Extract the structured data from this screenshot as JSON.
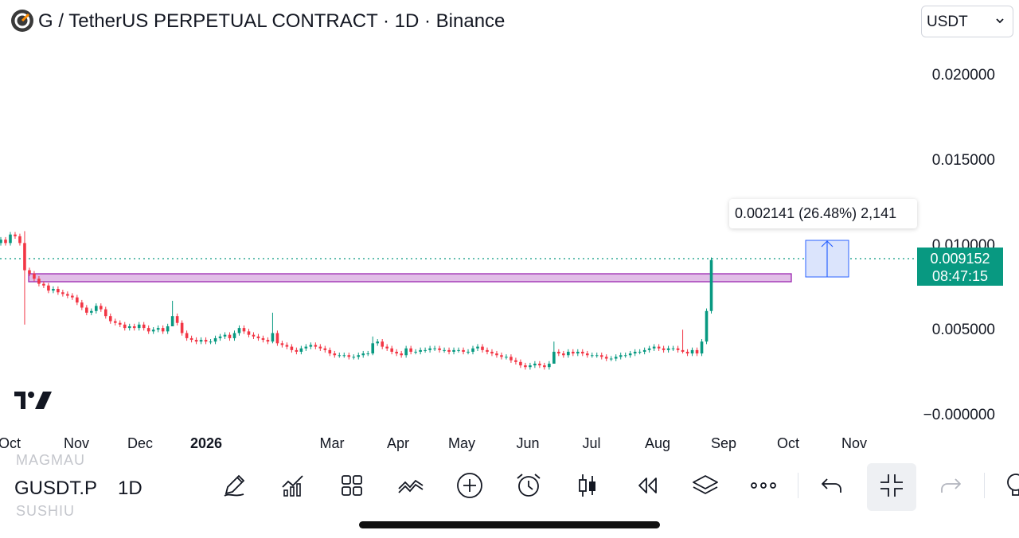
{
  "header": {
    "title": "G / TetherUS PERPETUAL CONTRACT · 1D · Binance",
    "currency": "USDT"
  },
  "price_axis": [
    "0.020000",
    "0.015000",
    "0.010000",
    "0.005000",
    "−0.000000"
  ],
  "current_price": {
    "value": "0.009152",
    "countdown": "08:47:15",
    "color": "#089981"
  },
  "measure_tooltip": "0.002141 (26.48%) 2,141",
  "time_axis": [
    "Oct",
    "Nov",
    "Dec",
    "2026",
    "Mar",
    "Apr",
    "May",
    "Jun",
    "Jul",
    "Aug",
    "Sep",
    "Oct",
    "Nov"
  ],
  "bottom_bar": {
    "faded_above": "MAGMAU",
    "symbol": "GUSDT.P",
    "faded_below": "SUSHIU",
    "interval": "1D",
    "icons": [
      "pen-icon",
      "indicators-icon",
      "templates-icon",
      "compare-icon",
      "add-icon",
      "alert-icon",
      "candles-icon",
      "replay-icon",
      "layers-icon",
      "more-icon",
      "undo-icon",
      "collapse-icon",
      "redo-icon",
      "lightbulb-icon"
    ]
  },
  "colors": {
    "up": "#089981",
    "down": "#f23645",
    "zone": "#e1bee7",
    "measure": "#2962ff"
  },
  "chart_data": {
    "type": "candlestick",
    "ylim": [
      0,
      0.02
    ],
    "last_price": 0.009152,
    "closes": [
      0.0103,
      0.0101,
      0.0106,
      0.0105,
      0.0101,
      0.0085,
      0.0083,
      0.008,
      0.0077,
      0.0076,
      0.0073,
      0.0074,
      0.0072,
      0.0071,
      0.007,
      0.0069,
      0.0066,
      0.0063,
      0.006,
      0.0061,
      0.0064,
      0.0062,
      0.0058,
      0.0055,
      0.0054,
      0.0053,
      0.0051,
      0.0052,
      0.0051,
      0.0053,
      0.0051,
      0.0049,
      0.005,
      0.0051,
      0.0049,
      0.0052,
      0.0058,
      0.0054,
      0.0048,
      0.0045,
      0.0044,
      0.0043,
      0.0044,
      0.0043,
      0.0043,
      0.0045,
      0.0046,
      0.0047,
      0.0045,
      0.0048,
      0.0051,
      0.0049,
      0.0047,
      0.0046,
      0.0045,
      0.0044,
      0.0043,
      0.0048,
      0.0042,
      0.0041,
      0.004,
      0.0038,
      0.0037,
      0.0039,
      0.004,
      0.0041,
      0.004,
      0.0039,
      0.0038,
      0.0036,
      0.0035,
      0.0035,
      0.0035,
      0.0034,
      0.0034,
      0.0035,
      0.0036,
      0.0036,
      0.0042,
      0.0043,
      0.004,
      0.0039,
      0.0037,
      0.0036,
      0.0035,
      0.0039,
      0.0037,
      0.0037,
      0.0038,
      0.0038,
      0.0039,
      0.0039,
      0.0038,
      0.0038,
      0.0037,
      0.0038,
      0.0038,
      0.0037,
      0.0037,
      0.0039,
      0.004,
      0.0038,
      0.0037,
      0.0036,
      0.0035,
      0.0034,
      0.0034,
      0.0032,
      0.0031,
      0.0029,
      0.0028,
      0.0029,
      0.003,
      0.0029,
      0.0028,
      0.003,
      0.0037,
      0.0036,
      0.0035,
      0.0037,
      0.0036,
      0.0037,
      0.0036,
      0.0035,
      0.0035,
      0.0035,
      0.0034,
      0.0033,
      0.0033,
      0.0034,
      0.0035,
      0.0035,
      0.0036,
      0.0037,
      0.0037,
      0.0038,
      0.0039,
      0.004,
      0.0039,
      0.0038,
      0.0039,
      0.0039,
      0.0038,
      0.0037,
      0.0036,
      0.0038,
      0.0036,
      0.0043,
      0.0061,
      0.0091
    ],
    "peak_wicks": [
      {
        "i": 5,
        "high": 0.0108,
        "low": 0.0053
      },
      {
        "i": 36,
        "high": 0.0067,
        "low": 0.0052
      },
      {
        "i": 57,
        "high": 0.006,
        "low": 0.0042
      },
      {
        "i": 78,
        "high": 0.0046,
        "low": 0.0035
      },
      {
        "i": 116,
        "high": 0.0043,
        "low": 0.0033
      },
      {
        "i": 143,
        "high": 0.005,
        "low": 0.0036
      },
      {
        "i": 159,
        "high": 0.0101,
        "low": 0.0056
      }
    ]
  }
}
